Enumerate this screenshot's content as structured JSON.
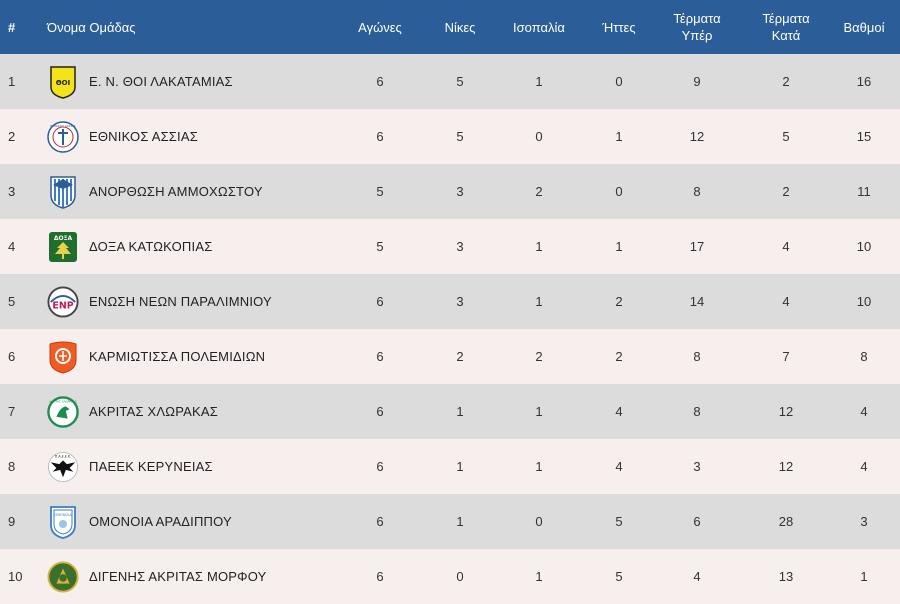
{
  "headers": {
    "pos": "#",
    "team": "Όνομα Ομάδας",
    "played": "Αγώνες",
    "wins": "Νίκες",
    "draws": "Ισοπαλία",
    "losses": "Ήττες",
    "goals_for_line1": "Τέρματα",
    "goals_for_line2": "Υπέρ",
    "goals_against_line1": "Τέρματα",
    "goals_against_line2": "Κατά",
    "points": "Βαθμοί"
  },
  "rows": [
    {
      "pos": "1",
      "team": "Ε. Ν. ΘΟΙ ΛΑΚΑΤΑΜΙΑΣ",
      "played": "6",
      "wins": "5",
      "draws": "1",
      "losses": "0",
      "gf": "9",
      "ga": "2",
      "pts": "16",
      "logo": "thoi-lakatamias-crest",
      "logo_text": "ΘΟΙ"
    },
    {
      "pos": "2",
      "team": "ΕΘΝΙΚΟΣ ΑΣΣΙΑΣ",
      "played": "6",
      "wins": "5",
      "draws": "0",
      "losses": "1",
      "gf": "12",
      "ga": "5",
      "pts": "15",
      "logo": "ethnikos-assias-crest",
      "logo_text": "ΕΘΝΙΚΟΣ ΑΣΣΙΑΣ"
    },
    {
      "pos": "3",
      "team": "ΑΝΟΡΘΩΣΗ ΑΜΜΟΧΩΣΤΟΥ",
      "played": "5",
      "wins": "3",
      "draws": "2",
      "losses": "0",
      "gf": "8",
      "ga": "2",
      "pts": "11",
      "logo": "anorthosis-crest"
    },
    {
      "pos": "4",
      "team": "ΔΟΞΑ ΚΑΤΩΚΟΠΙΑΣ",
      "played": "5",
      "wins": "3",
      "draws": "1",
      "losses": "1",
      "gf": "17",
      "ga": "4",
      "pts": "10",
      "logo": "doxa-katokopias-crest",
      "logo_text": "ΔΟΞΑ"
    },
    {
      "pos": "5",
      "team": "ΕΝΩΣΗ ΝΕΩΝ ΠΑΡΑΛΙΜΝΙΟΥ",
      "played": "6",
      "wins": "3",
      "draws": "1",
      "losses": "2",
      "gf": "14",
      "ga": "4",
      "pts": "10",
      "logo": "enp-crest",
      "logo_text": "ENP"
    },
    {
      "pos": "6",
      "team": "ΚΑΡΜΙΩΤΙΣΣΑ ΠΟΛΕΜΙΔΙΩΝ",
      "played": "6",
      "wins": "2",
      "draws": "2",
      "losses": "2",
      "gf": "8",
      "ga": "7",
      "pts": "8",
      "logo": "karmiotissa-crest"
    },
    {
      "pos": "7",
      "team": "ΑΚΡΙΤΑΣ ΧΛΩΡΑΚΑΣ",
      "played": "6",
      "wins": "1",
      "draws": "1",
      "losses": "4",
      "gf": "8",
      "ga": "12",
      "pts": "4",
      "logo": "akritas-chlorakas-crest",
      "logo_text": "ΑΚΡΙΤΑΣ ΧΛΩΡΑΚΑΣ"
    },
    {
      "pos": "8",
      "team": "ΠΑΕΕΚ ΚΕΡΥΝΕΙΑΣ",
      "played": "6",
      "wins": "1",
      "draws": "1",
      "losses": "4",
      "gf": "3",
      "ga": "12",
      "pts": "4",
      "logo": "paeek-crest",
      "logo_text": "Π.Α.Ε.Ε.Κ."
    },
    {
      "pos": "9",
      "team": "ΟΜΟΝΟΙΑ ΑΡΑΔΙΠΠΟΥ",
      "played": "6",
      "wins": "1",
      "draws": "0",
      "losses": "5",
      "gf": "6",
      "ga": "28",
      "pts": "3",
      "logo": "omonoia-aradippou-crest",
      "logo_text": "ΟΜΟΝΟΙΑ"
    },
    {
      "pos": "10",
      "team": "ΔΙΓΕΝΗΣ ΑΚΡΙΤΑΣ ΜΟΡΦΟΥ",
      "played": "6",
      "wins": "0",
      "draws": "1",
      "losses": "5",
      "gf": "4",
      "ga": "13",
      "pts": "1",
      "logo": "digenis-morfou-crest"
    }
  ],
  "colors": {
    "header_bg": "#2b5d98",
    "row_odd": "#dcdcdc",
    "row_even": "#f7eeee"
  }
}
